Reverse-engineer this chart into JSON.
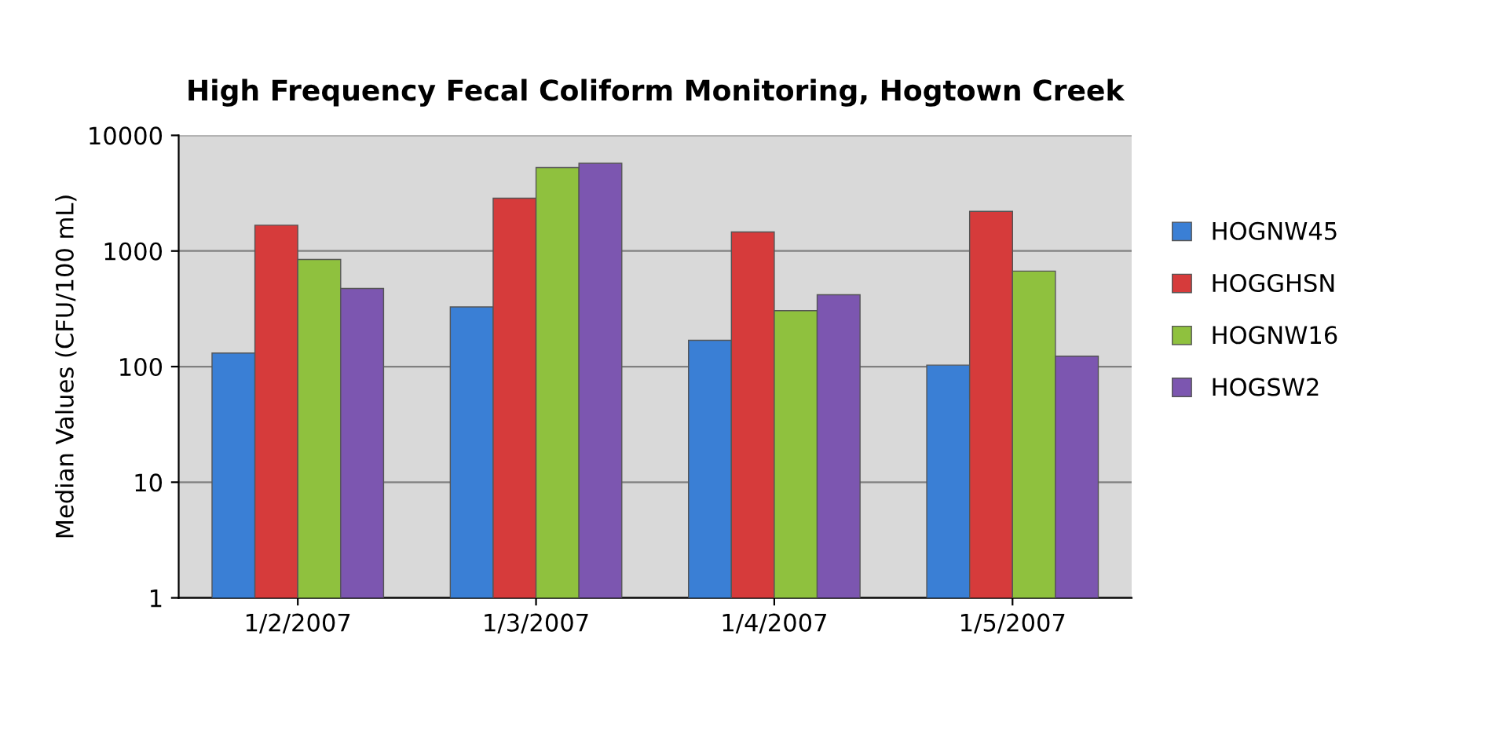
{
  "chart_data": {
    "type": "bar",
    "title": "High Frequency Fecal Coliform Monitoring, Hogtown Creek",
    "ylabel": "Median Values (CFU/100 mL)",
    "categories": [
      "1/2/2007",
      "1/3/2007",
      "1/4/2007",
      "1/5/2007"
    ],
    "series": [
      {
        "name": "HOGNW45",
        "color": "#3a7fd5",
        "values": [
          131,
          328,
          169,
          103
        ]
      },
      {
        "name": "HOGGHSN",
        "color": "#d63b3b",
        "values": [
          1670,
          2860,
          1460,
          2200
        ]
      },
      {
        "name": "HOGNW16",
        "color": "#8fc13e",
        "values": [
          845,
          5260,
          305,
          670
        ]
      },
      {
        "name": "HOGSW2",
        "color": "#7c56b0",
        "values": [
          474,
          5730,
          418,
          123
        ]
      }
    ],
    "log": true,
    "ylim": [
      1,
      10000
    ],
    "yticks": [
      1,
      10,
      100,
      1000,
      10000
    ],
    "grid": "y",
    "legend": "right"
  }
}
